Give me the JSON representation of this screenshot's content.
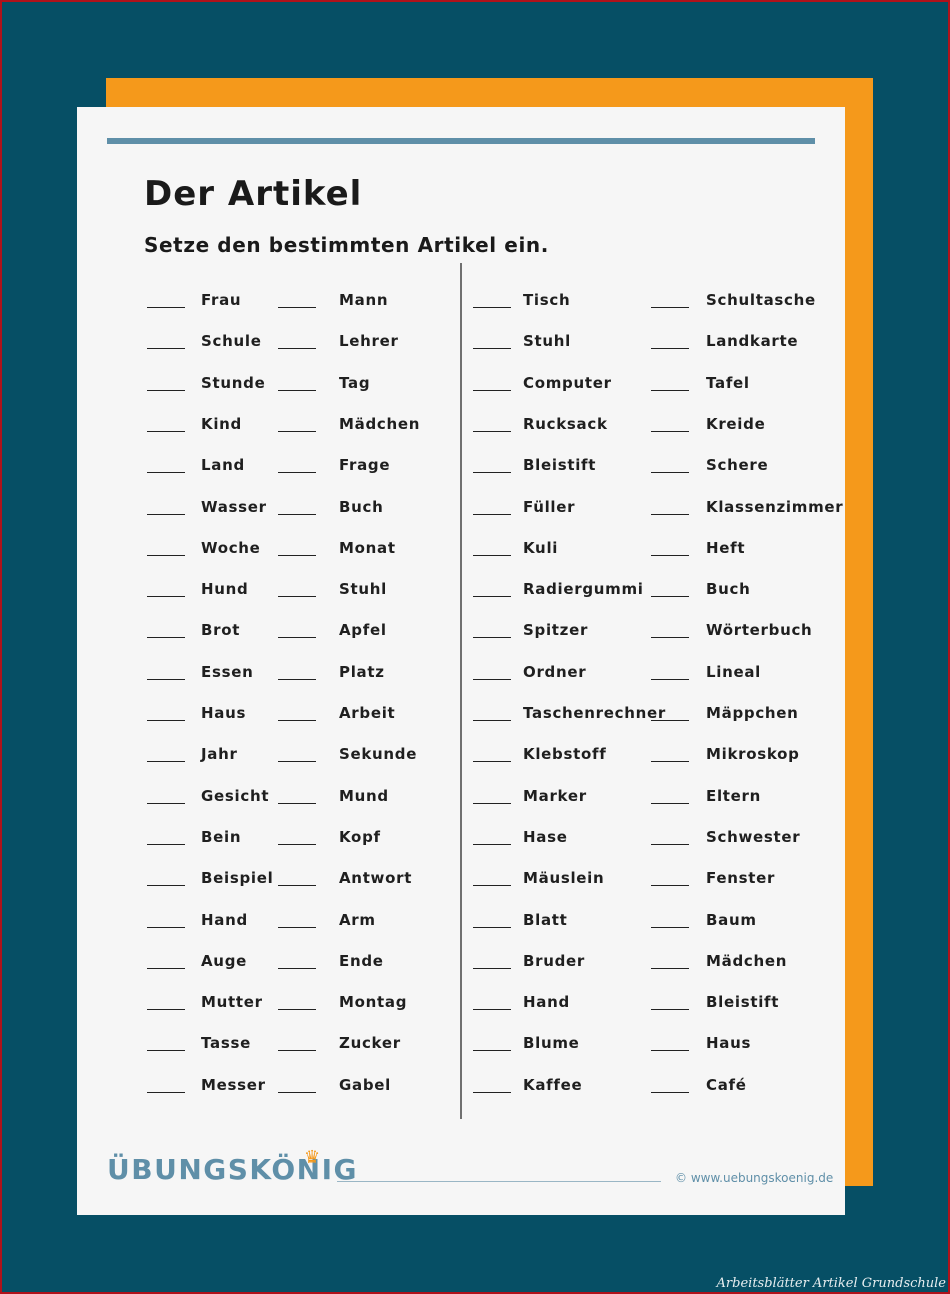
{
  "worksheet": {
    "title": "Der Artikel",
    "subtitle": "Setze den bestimmten Artikel ein.",
    "columns": [
      [
        "Frau",
        "Schule",
        "Stunde",
        "Kind",
        "Land",
        "Wasser",
        "Woche",
        "Hund",
        "Brot",
        "Essen",
        "Haus",
        "Jahr",
        "Gesicht",
        "Bein",
        "Beispiel",
        "Hand",
        "Auge",
        "Mutter",
        "Tasse",
        "Messer"
      ],
      [
        "Mann",
        "Lehrer",
        "Tag",
        "Mädchen",
        "Frage",
        "Buch",
        "Monat",
        "Stuhl",
        "Apfel",
        "Platz",
        "Arbeit",
        "Sekunde",
        "Mund",
        "Kopf",
        "Antwort",
        "Arm",
        "Ende",
        "Montag",
        "Zucker",
        "Gabel"
      ],
      [
        "Tisch",
        "Stuhl",
        "Computer",
        "Rucksack",
        "Bleistift",
        "Füller",
        "Kuli",
        "Radiergummi",
        "Spitzer",
        "Ordner",
        "Taschenrechner",
        "Klebstoff",
        "Marker",
        "Hase",
        "Mäuslein",
        "Blatt",
        "Bruder",
        "Hand",
        "Blume",
        "Kaffee"
      ],
      [
        "Schultasche",
        "Landkarte",
        "Tafel",
        "Kreide",
        "Schere",
        "Klassenzimmer",
        "Heft",
        "Buch",
        "Wörterbuch",
        "Lineal",
        "Mäppchen",
        "Mikroskop",
        "Eltern",
        "Schwester",
        "Fenster",
        "Baum",
        "Mädchen",
        "Bleistift",
        "Haus",
        "Café"
      ]
    ]
  },
  "footer": {
    "logo": "ÜBUNGSKÖNIG",
    "url": "© www.uebungskoenig.de"
  },
  "caption": "Arbeitsblätter Artikel Grundschule",
  "colors": {
    "background": "#064f65",
    "accent_orange": "#f5991b",
    "accent_blue": "#5f8fa8",
    "paper": "#f6f6f6"
  }
}
